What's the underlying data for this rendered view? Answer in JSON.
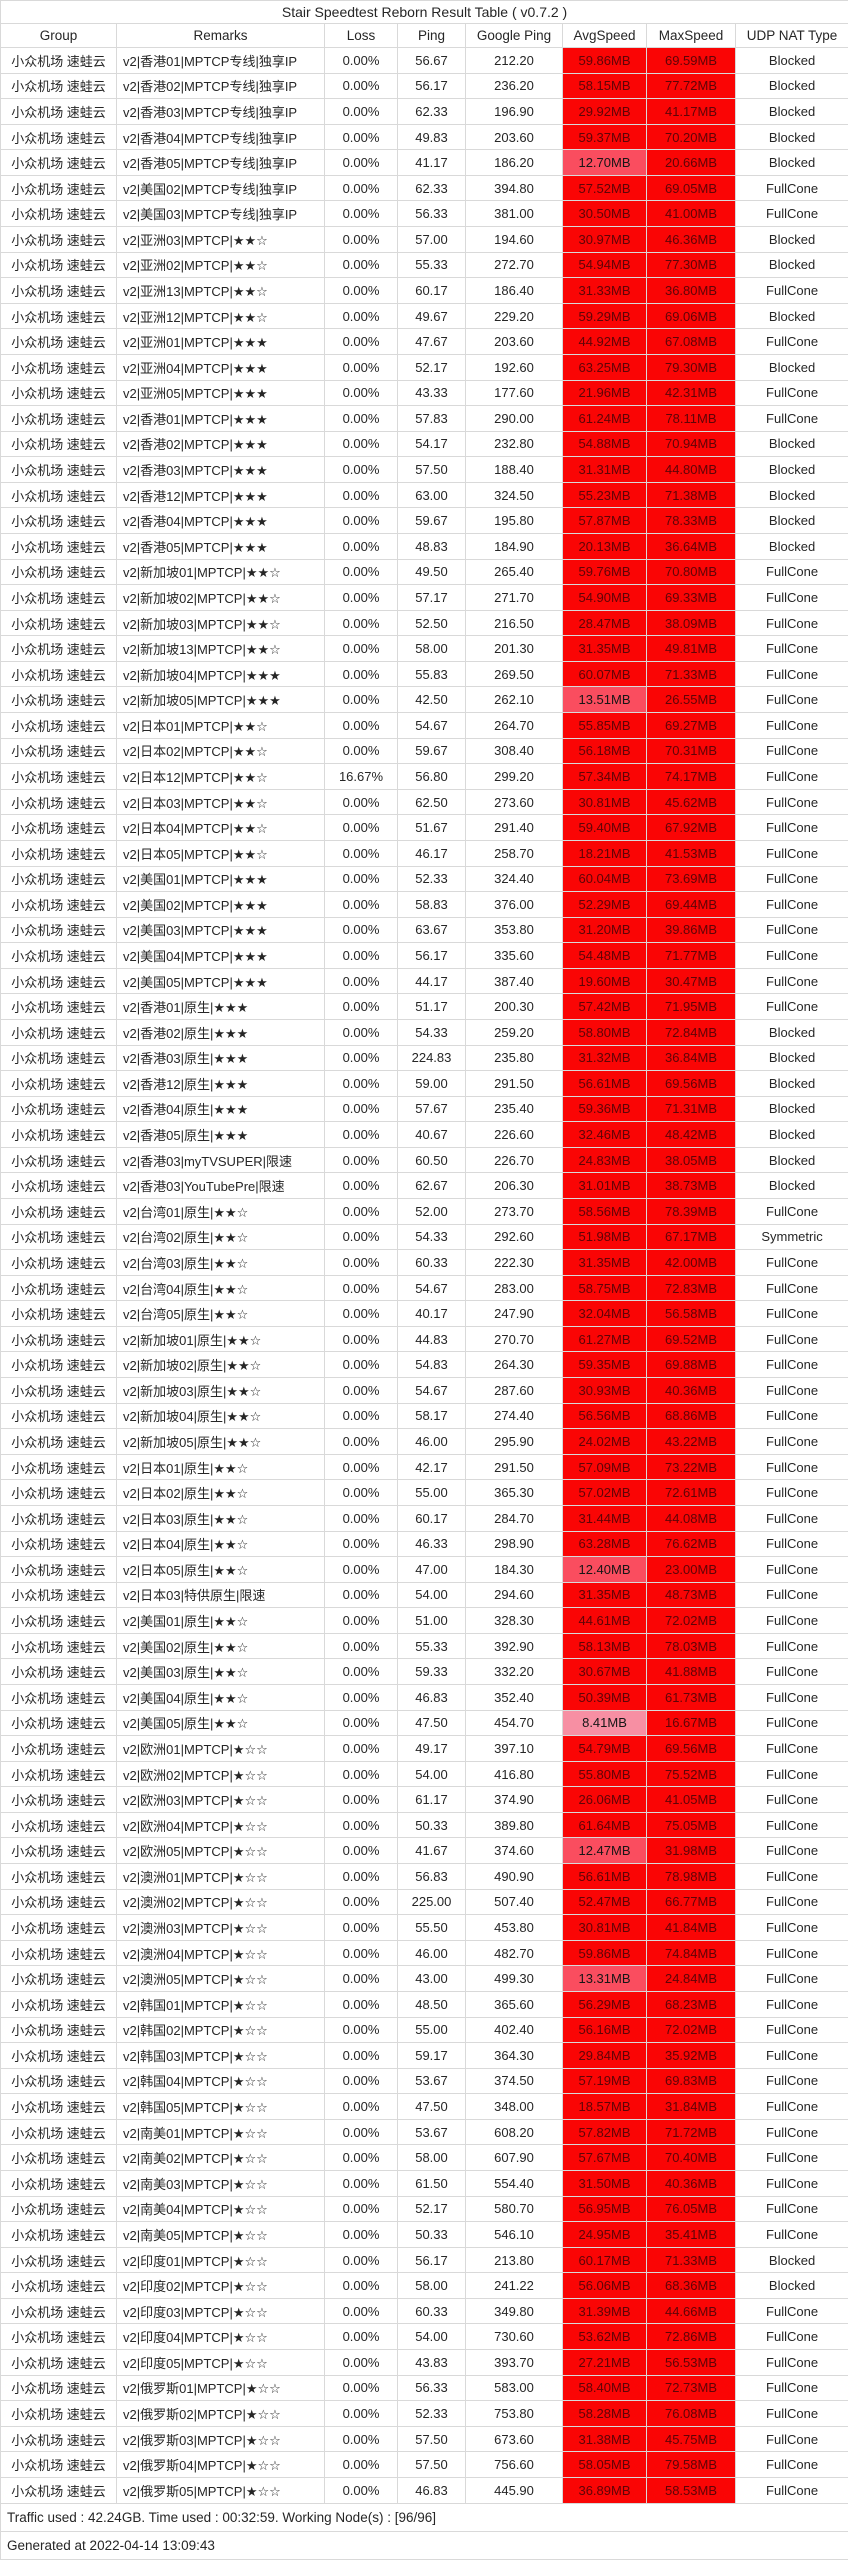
{
  "title": "Stair Speedtest Reborn Result Table ( v0.7.2 )",
  "table": {
    "columns": [
      "Group",
      "Remarks",
      "Loss",
      "Ping",
      "Google Ping",
      "AvgSpeed",
      "MaxSpeed",
      "UDP NAT Type"
    ],
    "group_label": "小众机场 速蛙云",
    "rows": [
      [
        "v2|香港01|MPTCP专线|独享IP",
        "0.00%",
        "56.67",
        "212.20",
        "59.86MB",
        "69.59MB",
        "Blocked"
      ],
      [
        "v2|香港02|MPTCP专线|独享IP",
        "0.00%",
        "56.17",
        "236.20",
        "58.15MB",
        "77.72MB",
        "Blocked"
      ],
      [
        "v2|香港03|MPTCP专线|独享IP",
        "0.00%",
        "62.33",
        "196.90",
        "29.92MB",
        "41.17MB",
        "Blocked"
      ],
      [
        "v2|香港04|MPTCP专线|独享IP",
        "0.00%",
        "49.83",
        "203.60",
        "59.37MB",
        "70.20MB",
        "Blocked"
      ],
      [
        "v2|香港05|MPTCP专线|独享IP",
        "0.00%",
        "41.17",
        "186.20",
        "12.70MB",
        "20.66MB",
        "Blocked"
      ],
      [
        "v2|美国02|MPTCP专线|独享IP",
        "0.00%",
        "62.33",
        "394.80",
        "57.52MB",
        "69.05MB",
        "FullCone"
      ],
      [
        "v2|美国03|MPTCP专线|独享IP",
        "0.00%",
        "56.33",
        "381.00",
        "30.50MB",
        "41.00MB",
        "FullCone"
      ],
      [
        "v2|亚洲03|MPTCP|★★☆",
        "0.00%",
        "57.00",
        "194.60",
        "30.97MB",
        "46.36MB",
        "Blocked"
      ],
      [
        "v2|亚洲02|MPTCP|★★☆",
        "0.00%",
        "55.33",
        "272.70",
        "54.94MB",
        "77.30MB",
        "Blocked"
      ],
      [
        "v2|亚洲13|MPTCP|★★☆",
        "0.00%",
        "60.17",
        "186.40",
        "31.33MB",
        "36.80MB",
        "FullCone"
      ],
      [
        "v2|亚洲12|MPTCP|★★☆",
        "0.00%",
        "49.67",
        "229.20",
        "59.29MB",
        "69.06MB",
        "Blocked"
      ],
      [
        "v2|亚洲01|MPTCP|★★★",
        "0.00%",
        "47.67",
        "203.60",
        "44.92MB",
        "67.08MB",
        "FullCone"
      ],
      [
        "v2|亚洲04|MPTCP|★★★",
        "0.00%",
        "52.17",
        "192.60",
        "63.25MB",
        "79.30MB",
        "Blocked"
      ],
      [
        "v2|亚洲05|MPTCP|★★★",
        "0.00%",
        "43.33",
        "177.60",
        "21.96MB",
        "42.31MB",
        "FullCone"
      ],
      [
        "v2|香港01|MPTCP|★★★",
        "0.00%",
        "57.83",
        "290.00",
        "61.24MB",
        "78.11MB",
        "FullCone"
      ],
      [
        "v2|香港02|MPTCP|★★★",
        "0.00%",
        "54.17",
        "232.80",
        "54.88MB",
        "70.94MB",
        "Blocked"
      ],
      [
        "v2|香港03|MPTCP|★★★",
        "0.00%",
        "57.50",
        "188.40",
        "31.31MB",
        "44.80MB",
        "Blocked"
      ],
      [
        "v2|香港12|MPTCP|★★★",
        "0.00%",
        "63.00",
        "324.50",
        "55.23MB",
        "71.38MB",
        "Blocked"
      ],
      [
        "v2|香港04|MPTCP|★★★",
        "0.00%",
        "59.67",
        "195.80",
        "57.87MB",
        "78.33MB",
        "Blocked"
      ],
      [
        "v2|香港05|MPTCP|★★★",
        "0.00%",
        "48.83",
        "184.90",
        "20.13MB",
        "36.64MB",
        "Blocked"
      ],
      [
        "v2|新加坡01|MPTCP|★★☆",
        "0.00%",
        "49.50",
        "265.40",
        "59.76MB",
        "70.80MB",
        "FullCone"
      ],
      [
        "v2|新加坡02|MPTCP|★★☆",
        "0.00%",
        "57.17",
        "271.70",
        "54.90MB",
        "69.33MB",
        "FullCone"
      ],
      [
        "v2|新加坡03|MPTCP|★★☆",
        "0.00%",
        "52.50",
        "216.50",
        "28.47MB",
        "38.09MB",
        "FullCone"
      ],
      [
        "v2|新加坡13|MPTCP|★★☆",
        "0.00%",
        "58.00",
        "201.30",
        "31.35MB",
        "49.81MB",
        "FullCone"
      ],
      [
        "v2|新加坡04|MPTCP|★★★",
        "0.00%",
        "55.83",
        "269.50",
        "60.07MB",
        "71.33MB",
        "FullCone"
      ],
      [
        "v2|新加坡05|MPTCP|★★★",
        "0.00%",
        "42.50",
        "262.10",
        "13.51MB",
        "26.55MB",
        "FullCone"
      ],
      [
        "v2|日本01|MPTCP|★★☆",
        "0.00%",
        "54.67",
        "264.70",
        "55.85MB",
        "69.27MB",
        "FullCone"
      ],
      [
        "v2|日本02|MPTCP|★★☆",
        "0.00%",
        "59.67",
        "308.40",
        "56.18MB",
        "70.31MB",
        "FullCone"
      ],
      [
        "v2|日本12|MPTCP|★★☆",
        "16.67%",
        "56.80",
        "299.20",
        "57.34MB",
        "74.17MB",
        "FullCone"
      ],
      [
        "v2|日本03|MPTCP|★★☆",
        "0.00%",
        "62.50",
        "273.60",
        "30.81MB",
        "45.62MB",
        "FullCone"
      ],
      [
        "v2|日本04|MPTCP|★★☆",
        "0.00%",
        "51.67",
        "291.40",
        "59.40MB",
        "67.92MB",
        "FullCone"
      ],
      [
        "v2|日本05|MPTCP|★★☆",
        "0.00%",
        "46.17",
        "258.70",
        "18.21MB",
        "41.53MB",
        "FullCone"
      ],
      [
        "v2|美国01|MPTCP|★★★",
        "0.00%",
        "52.33",
        "324.40",
        "60.04MB",
        "73.69MB",
        "FullCone"
      ],
      [
        "v2|美国02|MPTCP|★★★",
        "0.00%",
        "58.83",
        "376.00",
        "52.29MB",
        "69.44MB",
        "FullCone"
      ],
      [
        "v2|美国03|MPTCP|★★★",
        "0.00%",
        "63.67",
        "353.80",
        "31.20MB",
        "39.86MB",
        "FullCone"
      ],
      [
        "v2|美国04|MPTCP|★★★",
        "0.00%",
        "56.17",
        "335.60",
        "54.48MB",
        "71.77MB",
        "FullCone"
      ],
      [
        "v2|美国05|MPTCP|★★★",
        "0.00%",
        "44.17",
        "387.40",
        "19.60MB",
        "30.47MB",
        "FullCone"
      ],
      [
        "v2|香港01|原生|★★★",
        "0.00%",
        "51.17",
        "200.30",
        "57.42MB",
        "71.95MB",
        "FullCone"
      ],
      [
        "v2|香港02|原生|★★★",
        "0.00%",
        "54.33",
        "259.20",
        "58.80MB",
        "72.84MB",
        "Blocked"
      ],
      [
        "v2|香港03|原生|★★★",
        "0.00%",
        "224.83",
        "235.80",
        "31.32MB",
        "36.84MB",
        "Blocked"
      ],
      [
        "v2|香港12|原生|★★★",
        "0.00%",
        "59.00",
        "291.50",
        "56.61MB",
        "69.56MB",
        "Blocked"
      ],
      [
        "v2|香港04|原生|★★★",
        "0.00%",
        "57.67",
        "235.40",
        "59.36MB",
        "71.31MB",
        "Blocked"
      ],
      [
        "v2|香港05|原生|★★★",
        "0.00%",
        "40.67",
        "226.60",
        "32.46MB",
        "48.42MB",
        "Blocked"
      ],
      [
        "v2|香港03|myTVSUPER|限速",
        "0.00%",
        "60.50",
        "226.70",
        "24.83MB",
        "38.05MB",
        "Blocked"
      ],
      [
        "v2|香港03|YouTubePre|限速",
        "0.00%",
        "62.67",
        "206.30",
        "31.01MB",
        "38.73MB",
        "Blocked"
      ],
      [
        "v2|台湾01|原生|★★☆",
        "0.00%",
        "52.00",
        "273.70",
        "58.56MB",
        "78.39MB",
        "FullCone"
      ],
      [
        "v2|台湾02|原生|★★☆",
        "0.00%",
        "54.33",
        "292.60",
        "51.98MB",
        "67.17MB",
        "Symmetric"
      ],
      [
        "v2|台湾03|原生|★★☆",
        "0.00%",
        "60.33",
        "222.30",
        "31.35MB",
        "42.00MB",
        "FullCone"
      ],
      [
        "v2|台湾04|原生|★★☆",
        "0.00%",
        "54.67",
        "283.00",
        "58.75MB",
        "72.83MB",
        "FullCone"
      ],
      [
        "v2|台湾05|原生|★★☆",
        "0.00%",
        "40.17",
        "247.90",
        "32.04MB",
        "56.58MB",
        "FullCone"
      ],
      [
        "v2|新加坡01|原生|★★☆",
        "0.00%",
        "44.83",
        "270.70",
        "61.27MB",
        "69.52MB",
        "FullCone"
      ],
      [
        "v2|新加坡02|原生|★★☆",
        "0.00%",
        "54.83",
        "264.30",
        "59.35MB",
        "69.88MB",
        "FullCone"
      ],
      [
        "v2|新加坡03|原生|★★☆",
        "0.00%",
        "54.67",
        "287.60",
        "30.93MB",
        "40.36MB",
        "FullCone"
      ],
      [
        "v2|新加坡04|原生|★★☆",
        "0.00%",
        "58.17",
        "274.40",
        "56.56MB",
        "68.86MB",
        "FullCone"
      ],
      [
        "v2|新加坡05|原生|★★☆",
        "0.00%",
        "46.00",
        "295.90",
        "24.02MB",
        "43.22MB",
        "FullCone"
      ],
      [
        "v2|日本01|原生|★★☆",
        "0.00%",
        "42.17",
        "291.50",
        "57.09MB",
        "73.22MB",
        "FullCone"
      ],
      [
        "v2|日本02|原生|★★☆",
        "0.00%",
        "55.00",
        "365.30",
        "57.02MB",
        "72.61MB",
        "FullCone"
      ],
      [
        "v2|日本03|原生|★★☆",
        "0.00%",
        "60.17",
        "284.70",
        "31.44MB",
        "44.08MB",
        "FullCone"
      ],
      [
        "v2|日本04|原生|★★☆",
        "0.00%",
        "46.33",
        "298.90",
        "63.28MB",
        "76.62MB",
        "FullCone"
      ],
      [
        "v2|日本05|原生|★★☆",
        "0.00%",
        "47.00",
        "184.30",
        "12.40MB",
        "23.00MB",
        "FullCone"
      ],
      [
        "v2|日本03|特供原生|限速",
        "0.00%",
        "54.00",
        "294.60",
        "31.35MB",
        "48.73MB",
        "FullCone"
      ],
      [
        "v2|美国01|原生|★★☆",
        "0.00%",
        "51.00",
        "328.30",
        "44.61MB",
        "72.02MB",
        "FullCone"
      ],
      [
        "v2|美国02|原生|★★☆",
        "0.00%",
        "55.33",
        "392.90",
        "58.13MB",
        "78.03MB",
        "FullCone"
      ],
      [
        "v2|美国03|原生|★★☆",
        "0.00%",
        "59.33",
        "332.20",
        "30.67MB",
        "41.88MB",
        "FullCone"
      ],
      [
        "v2|美国04|原生|★★☆",
        "0.00%",
        "46.83",
        "352.40",
        "50.39MB",
        "61.73MB",
        "FullCone"
      ],
      [
        "v2|美国05|原生|★★☆",
        "0.00%",
        "47.50",
        "454.70",
        "8.41MB",
        "16.67MB",
        "FullCone"
      ],
      [
        "v2|欧洲01|MPTCP|★☆☆",
        "0.00%",
        "49.17",
        "397.10",
        "54.79MB",
        "69.56MB",
        "FullCone"
      ],
      [
        "v2|欧洲02|MPTCP|★☆☆",
        "0.00%",
        "54.00",
        "416.80",
        "55.80MB",
        "75.52MB",
        "FullCone"
      ],
      [
        "v2|欧洲03|MPTCP|★☆☆",
        "0.00%",
        "61.17",
        "374.90",
        "26.06MB",
        "41.05MB",
        "FullCone"
      ],
      [
        "v2|欧洲04|MPTCP|★☆☆",
        "0.00%",
        "50.33",
        "389.80",
        "61.64MB",
        "75.05MB",
        "FullCone"
      ],
      [
        "v2|欧洲05|MPTCP|★☆☆",
        "0.00%",
        "41.67",
        "374.60",
        "12.47MB",
        "31.98MB",
        "FullCone"
      ],
      [
        "v2|澳洲01|MPTCP|★☆☆",
        "0.00%",
        "56.83",
        "490.90",
        "56.61MB",
        "78.98MB",
        "FullCone"
      ],
      [
        "v2|澳洲02|MPTCP|★☆☆",
        "0.00%",
        "225.00",
        "507.40",
        "52.47MB",
        "66.77MB",
        "FullCone"
      ],
      [
        "v2|澳洲03|MPTCP|★☆☆",
        "0.00%",
        "55.50",
        "453.80",
        "30.81MB",
        "41.84MB",
        "FullCone"
      ],
      [
        "v2|澳洲04|MPTCP|★☆☆",
        "0.00%",
        "46.00",
        "482.70",
        "59.86MB",
        "74.84MB",
        "FullCone"
      ],
      [
        "v2|澳洲05|MPTCP|★☆☆",
        "0.00%",
        "43.00",
        "499.30",
        "13.31MB",
        "24.84MB",
        "FullCone"
      ],
      [
        "v2|韩国01|MPTCP|★☆☆",
        "0.00%",
        "48.50",
        "365.60",
        "56.29MB",
        "68.23MB",
        "FullCone"
      ],
      [
        "v2|韩国02|MPTCP|★☆☆",
        "0.00%",
        "55.00",
        "402.40",
        "56.16MB",
        "72.02MB",
        "FullCone"
      ],
      [
        "v2|韩国03|MPTCP|★☆☆",
        "0.00%",
        "59.17",
        "364.30",
        "29.84MB",
        "35.92MB",
        "FullCone"
      ],
      [
        "v2|韩国04|MPTCP|★☆☆",
        "0.00%",
        "53.67",
        "374.50",
        "57.19MB",
        "69.83MB",
        "FullCone"
      ],
      [
        "v2|韩国05|MPTCP|★☆☆",
        "0.00%",
        "47.50",
        "348.00",
        "18.57MB",
        "31.84MB",
        "FullCone"
      ],
      [
        "v2|南美01|MPTCP|★☆☆",
        "0.00%",
        "53.67",
        "608.20",
        "57.82MB",
        "71.72MB",
        "FullCone"
      ],
      [
        "v2|南美02|MPTCP|★☆☆",
        "0.00%",
        "58.00",
        "607.90",
        "57.67MB",
        "70.40MB",
        "FullCone"
      ],
      [
        "v2|南美03|MPTCP|★☆☆",
        "0.00%",
        "61.50",
        "554.40",
        "31.50MB",
        "40.36MB",
        "FullCone"
      ],
      [
        "v2|南美04|MPTCP|★☆☆",
        "0.00%",
        "52.17",
        "580.70",
        "56.95MB",
        "76.05MB",
        "FullCone"
      ],
      [
        "v2|南美05|MPTCP|★☆☆",
        "0.00%",
        "50.33",
        "546.10",
        "24.95MB",
        "35.41MB",
        "FullCone"
      ],
      [
        "v2|印度01|MPTCP|★☆☆",
        "0.00%",
        "56.17",
        "213.80",
        "60.17MB",
        "71.33MB",
        "Blocked"
      ],
      [
        "v2|印度02|MPTCP|★☆☆",
        "0.00%",
        "58.00",
        "241.22",
        "56.06MB",
        "68.36MB",
        "Blocked"
      ],
      [
        "v2|印度03|MPTCP|★☆☆",
        "0.00%",
        "60.33",
        "349.80",
        "31.39MB",
        "44.66MB",
        "FullCone"
      ],
      [
        "v2|印度04|MPTCP|★☆☆",
        "0.00%",
        "54.00",
        "730.60",
        "53.62MB",
        "72.86MB",
        "FullCone"
      ],
      [
        "v2|印度05|MPTCP|★☆☆",
        "0.00%",
        "43.83",
        "393.70",
        "27.21MB",
        "56.53MB",
        "FullCone"
      ],
      [
        "v2|俄罗斯01|MPTCP|★☆☆",
        "0.00%",
        "56.33",
        "583.00",
        "58.40MB",
        "72.73MB",
        "FullCone"
      ],
      [
        "v2|俄罗斯02|MPTCP|★☆☆",
        "0.00%",
        "52.33",
        "753.80",
        "58.28MB",
        "76.08MB",
        "FullCone"
      ],
      [
        "v2|俄罗斯03|MPTCP|★☆☆",
        "0.00%",
        "57.50",
        "673.60",
        "31.38MB",
        "45.75MB",
        "FullCone"
      ],
      [
        "v2|俄罗斯04|MPTCP|★☆☆",
        "0.00%",
        "57.50",
        "756.60",
        "58.05MB",
        "79.58MB",
        "FullCone"
      ],
      [
        "v2|俄罗斯05|MPTCP|★☆☆",
        "0.00%",
        "46.83",
        "445.90",
        "36.89MB",
        "58.53MB",
        "FullCone"
      ]
    ]
  },
  "colors": {
    "speed_high_bg": "#FA0505",
    "speed_high_text": "#5E0407",
    "speed_mid_bg": "#FA4D5F",
    "speed_low_bg": "#F78FA3",
    "border": "#D9D9D9"
  },
  "footer": {
    "summary": "Traffic used : 42.24GB. Time used : 00:32:59. Working Node(s) : [96/96]",
    "generated": "Generated at 2022-04-14 13:09:43"
  }
}
